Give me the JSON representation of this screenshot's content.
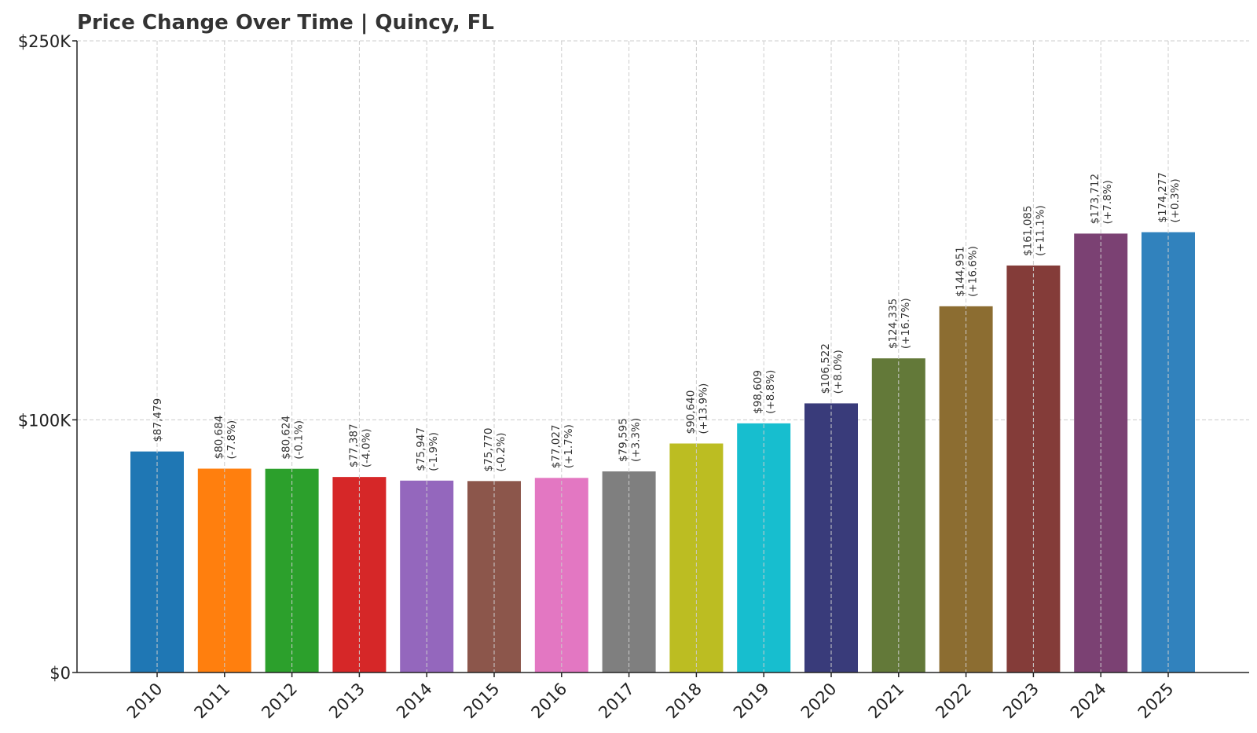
{
  "chart_data": {
    "type": "bar",
    "title": "Price Change Over Time | Quincy, FL",
    "xlabel": "",
    "ylabel": "",
    "categories": [
      "2010",
      "2011",
      "2012",
      "2013",
      "2014",
      "2015",
      "2016",
      "2017",
      "2018",
      "2019",
      "2020",
      "2021",
      "2022",
      "2023",
      "2024",
      "2025"
    ],
    "values": [
      87479,
      80684,
      80624,
      77387,
      75947,
      75770,
      77027,
      79595,
      90640,
      98609,
      106522,
      124335,
      144951,
      161085,
      173712,
      174277
    ],
    "value_labels": [
      "$87,479",
      "$80,684",
      "$80,624",
      "$77,387",
      "$75,947",
      "$75,770",
      "$77,027",
      "$79,595",
      "$90,640",
      "$98,609",
      "$106,522",
      "$124,335",
      "$144,951",
      "$161,085",
      "$173,712",
      "$174,277"
    ],
    "change_labels": [
      "",
      "(-7.8%)",
      "(-0.1%)",
      "(-4.0%)",
      "(-1.9%)",
      "(-0.2%)",
      "(+1.7%)",
      "(+3.3%)",
      "(+13.9%)",
      "(+8.8%)",
      "(+8.0%)",
      "(+16.7%)",
      "(+16.6%)",
      "(+11.1%)",
      "(+7.8%)",
      "(+0.3%)"
    ],
    "colors": [
      "#1f77b4",
      "#ff7f0e",
      "#2ca02c",
      "#d62728",
      "#9467bd",
      "#8c564b",
      "#e377c2",
      "#7f7f7f",
      "#bcbd22",
      "#17becf",
      "#393b7a",
      "#637939",
      "#8c6d31",
      "#843c39",
      "#7b4173",
      "#3182bd"
    ],
    "ylim": [
      0,
      250000
    ],
    "yticks": [
      0,
      100000,
      250000
    ],
    "ytick_labels": [
      "$0",
      "$100K",
      "$250K"
    ],
    "grid": true
  }
}
